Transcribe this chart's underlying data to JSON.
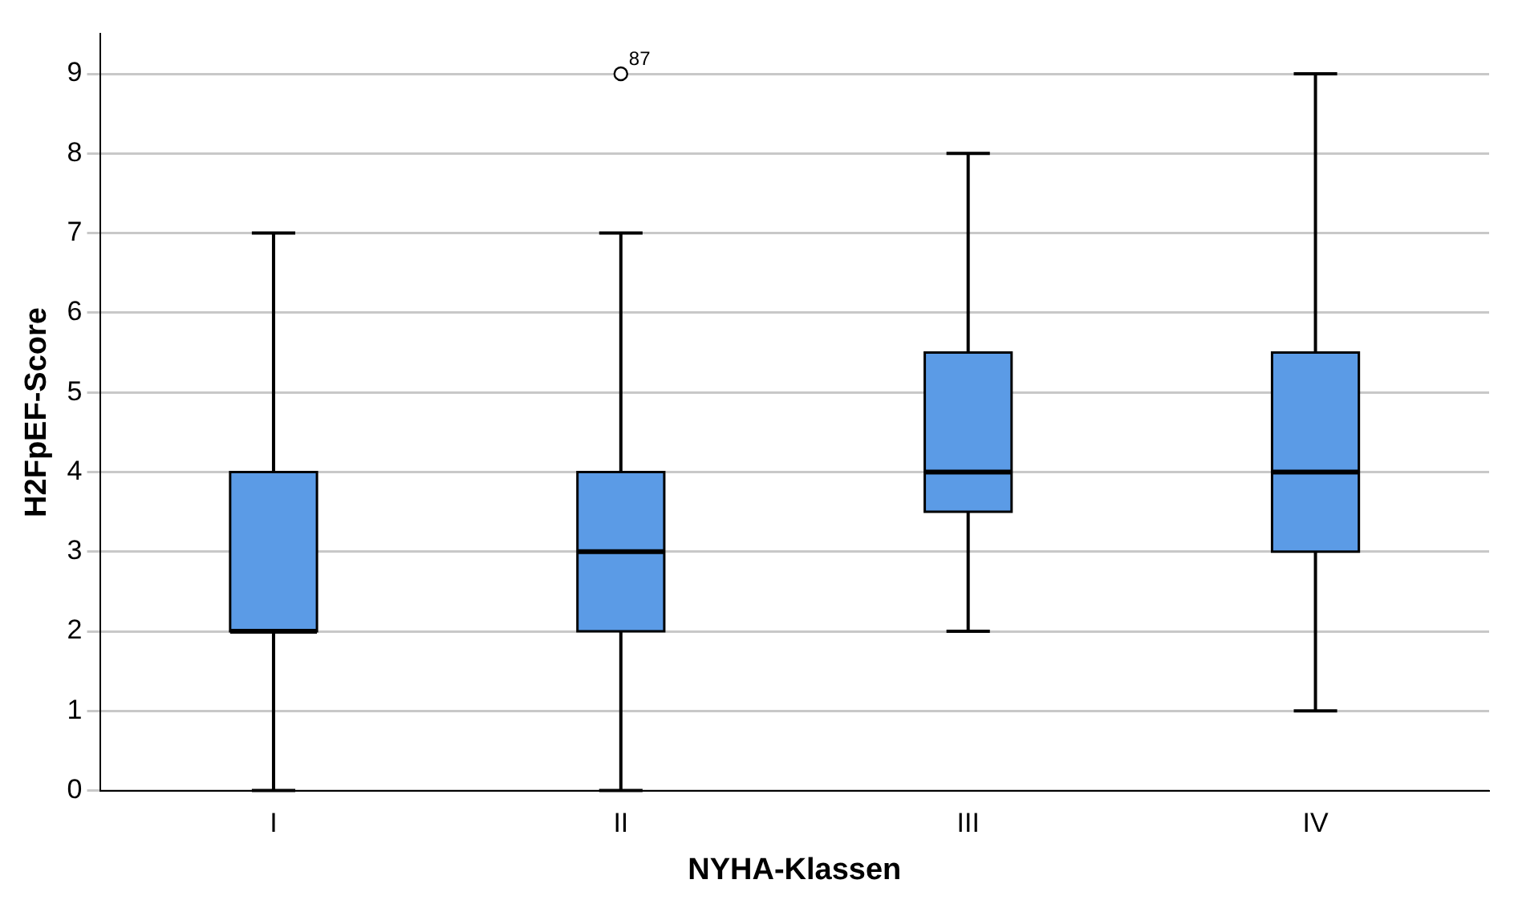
{
  "chart_data": {
    "type": "box",
    "xlabel": "NYHA-Klassen",
    "ylabel": "H2FpEF-Score",
    "categories": [
      "I",
      "II",
      "III",
      "IV"
    ],
    "color": "#5b9be6",
    "boxes": [
      {
        "low": 0,
        "q1": 2,
        "median": 2,
        "q3": 4,
        "high": 7
      },
      {
        "low": 0,
        "q1": 2,
        "median": 3,
        "q3": 4,
        "high": 7,
        "outliers": [
          9
        ]
      },
      {
        "low": 2,
        "q1": 3.5,
        "median": 4,
        "q3": 5.5,
        "high": 8
      },
      {
        "low": 1,
        "q1": 3,
        "median": 4,
        "q3": 5.5,
        "high": 9
      }
    ],
    "ylim": [
      0,
      9.5
    ],
    "yticks": [
      0,
      1,
      2,
      3,
      4,
      5,
      6,
      7,
      8,
      9
    ],
    "grid": "y",
    "annotations": [
      "87"
    ]
  }
}
